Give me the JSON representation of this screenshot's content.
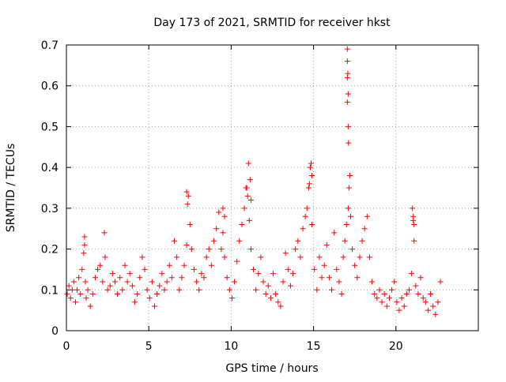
{
  "chart_data": {
    "type": "scatter",
    "title": "Day 173 of 2021, SRMTID for receiver hkst",
    "xlabel": "GPS time / hours",
    "ylabel": "SRMTID / TECUs",
    "xlim": [
      0,
      25
    ],
    "ylim": [
      0,
      0.7
    ],
    "xticks": [
      0,
      5,
      10,
      15,
      20
    ],
    "yticks": [
      0,
      0.1,
      0.2,
      0.3,
      0.4,
      0.5,
      0.6,
      0.7
    ],
    "grid": true,
    "marker": "+",
    "color": "#ff0000",
    "series": [
      {
        "name": "SRMTID",
        "x": [
          0.05,
          0.15,
          0.25,
          0.35,
          0.45,
          0.55,
          0.65,
          0.75,
          0.85,
          0.95,
          1.05,
          1.1,
          1.15,
          1.2,
          1.3,
          1.45,
          1.6,
          1.75,
          1.9,
          2.05,
          2.2,
          2.35,
          2.5,
          2.65,
          2.8,
          2.95,
          3.1,
          3.25,
          3.4,
          3.55,
          3.7,
          3.85,
          4.0,
          4.15,
          4.3,
          4.45,
          4.6,
          4.75,
          4.9,
          5.05,
          5.2,
          5.35,
          5.5,
          5.65,
          5.8,
          5.95,
          6.1,
          6.25,
          6.4,
          6.55,
          6.7,
          6.85,
          7.0,
          7.15,
          7.3,
          7.4,
          7.5,
          7.6,
          7.75,
          7.9,
          8.05,
          8.2,
          8.35,
          8.5,
          8.65,
          8.8,
          8.95,
          9.1,
          9.25,
          9.4,
          9.5,
          9.6,
          9.75,
          9.9,
          10.05,
          10.2,
          10.35,
          10.5,
          10.65,
          10.8,
          10.9,
          11.0,
          11.1,
          11.2,
          11.35,
          11.5,
          11.65,
          11.8,
          11.95,
          12.1,
          12.25,
          12.4,
          12.55,
          12.7,
          12.85,
          13.0,
          13.15,
          13.3,
          13.45,
          13.6,
          13.75,
          13.9,
          14.05,
          14.2,
          14.35,
          14.5,
          14.6,
          14.7,
          14.8,
          14.9,
          15.05,
          15.2,
          15.35,
          15.5,
          15.65,
          15.8,
          15.95,
          16.1,
          16.25,
          16.4,
          16.55,
          16.7,
          16.8,
          16.9,
          17.0,
          17.1,
          17.15,
          17.2,
          17.25,
          17.35,
          17.5,
          17.65,
          17.8,
          17.95,
          18.1,
          18.25,
          18.4,
          18.55,
          18.7,
          18.85,
          19.0,
          19.15,
          19.3,
          19.45,
          19.6,
          19.75,
          19.9,
          20.05,
          20.2,
          20.35,
          20.5,
          20.65,
          20.8,
          20.95,
          21.05,
          21.1,
          21.2,
          21.35,
          21.5,
          21.65,
          21.8,
          21.95,
          22.1,
          22.25,
          22.4,
          22.55,
          22.7,
          17.05,
          17.05,
          17.08,
          17.05,
          17.1,
          17.05,
          17.1,
          17.12,
          11.05,
          11.15,
          10.95,
          11.2,
          7.3,
          7.35,
          14.85,
          14.9,
          14.75,
          21.0,
          21.05,
          21.1,
          9.5,
          9.6,
          1.1,
          2.3
        ],
        "y": [
          0.09,
          0.11,
          0.08,
          0.1,
          0.12,
          0.07,
          0.1,
          0.13,
          0.09,
          0.15,
          0.19,
          0.23,
          0.12,
          0.08,
          0.1,
          0.06,
          0.09,
          0.13,
          0.15,
          0.16,
          0.12,
          0.18,
          0.1,
          0.11,
          0.14,
          0.12,
          0.09,
          0.13,
          0.1,
          0.16,
          0.12,
          0.14,
          0.11,
          0.07,
          0.09,
          0.13,
          0.18,
          0.15,
          0.1,
          0.08,
          0.12,
          0.06,
          0.09,
          0.11,
          0.14,
          0.1,
          0.12,
          0.16,
          0.13,
          0.22,
          0.18,
          0.1,
          0.13,
          0.16,
          0.21,
          0.33,
          0.26,
          0.2,
          0.15,
          0.12,
          0.1,
          0.14,
          0.13,
          0.18,
          0.2,
          0.16,
          0.22,
          0.25,
          0.29,
          0.2,
          0.24,
          0.18,
          0.13,
          0.1,
          0.08,
          0.12,
          0.17,
          0.22,
          0.26,
          0.3,
          0.35,
          0.33,
          0.27,
          0.2,
          0.15,
          0.1,
          0.14,
          0.18,
          0.12,
          0.09,
          0.11,
          0.08,
          0.14,
          0.09,
          0.07,
          0.06,
          0.12,
          0.19,
          0.15,
          0.11,
          0.14,
          0.2,
          0.22,
          0.18,
          0.25,
          0.28,
          0.3,
          0.35,
          0.4,
          0.26,
          0.15,
          0.1,
          0.18,
          0.13,
          0.16,
          0.21,
          0.13,
          0.1,
          0.24,
          0.15,
          0.12,
          0.09,
          0.18,
          0.22,
          0.26,
          0.3,
          0.35,
          0.38,
          0.28,
          0.2,
          0.16,
          0.13,
          0.18,
          0.22,
          0.25,
          0.28,
          0.18,
          0.12,
          0.09,
          0.08,
          0.1,
          0.07,
          0.09,
          0.06,
          0.08,
          0.1,
          0.12,
          0.07,
          0.05,
          0.08,
          0.06,
          0.09,
          0.1,
          0.14,
          0.28,
          0.26,
          0.11,
          0.09,
          0.13,
          0.08,
          0.07,
          0.05,
          0.09,
          0.06,
          0.04,
          0.07,
          0.12,
          0.69,
          0.66,
          0.63,
          0.62,
          0.58,
          0.56,
          0.5,
          0.46,
          0.41,
          0.37,
          0.35,
          0.32,
          0.34,
          0.31,
          0.41,
          0.38,
          0.36,
          0.3,
          0.27,
          0.22,
          0.3,
          0.28,
          0.21,
          0.24
        ]
      }
    ]
  }
}
